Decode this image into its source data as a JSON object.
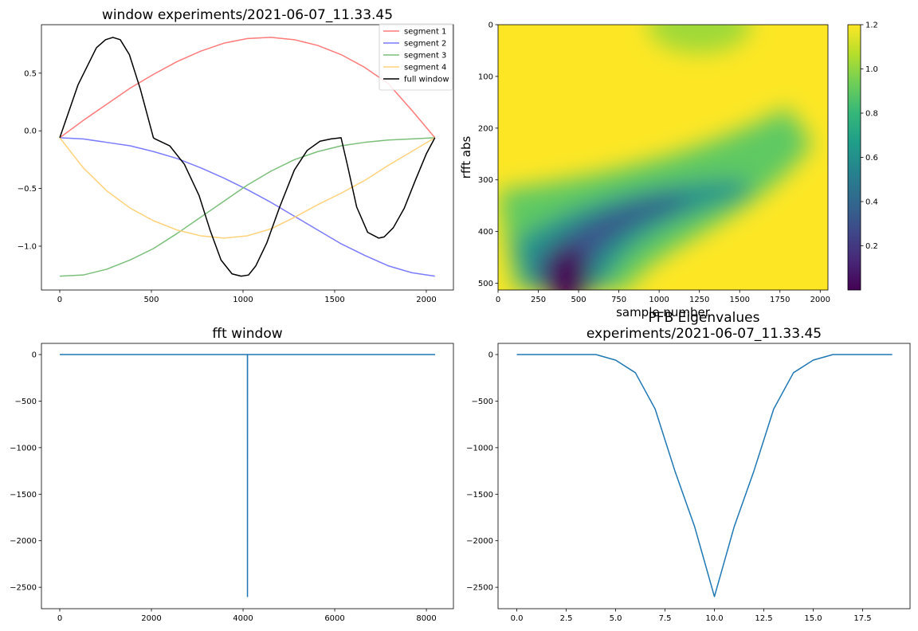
{
  "chart_data": [
    {
      "type": "line",
      "title": "window experiments/2021-06-07_11.33.45",
      "xlabel": "",
      "ylabel": "",
      "xlim": [
        -100,
        2148
      ],
      "ylim": [
        -1.38,
        0.92
      ],
      "xticks": [
        0,
        500,
        1000,
        1500,
        2000
      ],
      "yticks": [
        -1.0,
        -0.5,
        0.0,
        0.5
      ],
      "ytick_labels": [
        "−1.0",
        "−0.5",
        "0.0",
        "0.5"
      ],
      "legend_position": "top-right",
      "series": [
        {
          "name": "segment 1",
          "color": "#ff7b7b",
          "x": [
            0,
            128,
            256,
            384,
            512,
            640,
            768,
            896,
            1024,
            1152,
            1280,
            1408,
            1536,
            1664,
            1792,
            1920,
            2047
          ],
          "y": [
            -0.06,
            0.09,
            0.23,
            0.37,
            0.49,
            0.6,
            0.69,
            0.76,
            0.8,
            0.81,
            0.79,
            0.74,
            0.66,
            0.55,
            0.41,
            0.18,
            -0.06
          ]
        },
        {
          "name": "segment 2",
          "color": "#7b7bff",
          "x": [
            0,
            128,
            256,
            384,
            512,
            640,
            768,
            896,
            1024,
            1152,
            1280,
            1408,
            1536,
            1664,
            1792,
            1920,
            2047
          ],
          "y": [
            -0.06,
            -0.07,
            -0.1,
            -0.13,
            -0.18,
            -0.24,
            -0.32,
            -0.41,
            -0.51,
            -0.62,
            -0.74,
            -0.86,
            -0.98,
            -1.08,
            -1.17,
            -1.23,
            -1.26
          ]
        },
        {
          "name": "segment 3",
          "color": "#7bbf7b",
          "x": [
            0,
            128,
            256,
            384,
            512,
            640,
            768,
            896,
            1024,
            1152,
            1280,
            1408,
            1536,
            1664,
            1792,
            1920,
            2047
          ],
          "y": [
            -1.26,
            -1.25,
            -1.2,
            -1.12,
            -1.02,
            -0.89,
            -0.75,
            -0.61,
            -0.47,
            -0.35,
            -0.25,
            -0.18,
            -0.13,
            -0.1,
            -0.08,
            -0.07,
            -0.06
          ]
        },
        {
          "name": "segment 4",
          "color": "#ffd27b",
          "x": [
            0,
            128,
            256,
            384,
            512,
            640,
            768,
            896,
            1024,
            1152,
            1280,
            1408,
            1536,
            1664,
            1792,
            1920,
            2047
          ],
          "y": [
            -0.06,
            -0.32,
            -0.52,
            -0.67,
            -0.78,
            -0.86,
            -0.91,
            -0.93,
            -0.91,
            -0.85,
            -0.75,
            -0.64,
            -0.54,
            -0.43,
            -0.3,
            -0.18,
            -0.06
          ]
        },
        {
          "name": "full window",
          "color": "#000000",
          "x": [
            0,
            100,
            200,
            250,
            290,
            330,
            380,
            440,
            511,
            520,
            600,
            680,
            760,
            820,
            880,
            940,
            990,
            1030,
            1070,
            1130,
            1200,
            1280,
            1350,
            1420,
            1480,
            1535,
            1570,
            1620,
            1680,
            1740,
            1770,
            1820,
            1880,
            1940,
            2000,
            2047
          ],
          "y": [
            -0.06,
            0.4,
            0.72,
            0.79,
            0.81,
            0.79,
            0.66,
            0.36,
            -0.06,
            -0.07,
            -0.13,
            -0.29,
            -0.56,
            -0.86,
            -1.12,
            -1.24,
            -1.26,
            -1.25,
            -1.17,
            -0.97,
            -0.66,
            -0.34,
            -0.17,
            -0.09,
            -0.07,
            -0.06,
            -0.3,
            -0.66,
            -0.88,
            -0.93,
            -0.92,
            -0.84,
            -0.67,
            -0.43,
            -0.2,
            -0.06
          ]
        }
      ]
    },
    {
      "type": "heatmap",
      "title": "",
      "xlabel": "sample number",
      "ylabel": "rfft abs",
      "xlim": [
        0,
        2048
      ],
      "ylim": [
        513,
        0
      ],
      "xticks": [
        0,
        250,
        500,
        750,
        1000,
        1250,
        1500,
        1750,
        2000
      ],
      "yticks": [
        0,
        100,
        200,
        300,
        400,
        500
      ],
      "colormap": "viridis",
      "color_range": [
        0.0,
        1.2
      ],
      "colorbar_ticks": [
        0.2,
        0.4,
        0.6,
        0.8,
        1.0,
        1.2
      ]
    },
    {
      "type": "line",
      "title": "fft window",
      "xlabel": "",
      "ylabel": "",
      "xlim": [
        -400,
        8590
      ],
      "ylim": [
        -2730,
        120
      ],
      "xticks": [
        0,
        2000,
        4000,
        6000,
        8000
      ],
      "yticks": [
        -2500,
        -2000,
        -1500,
        -1000,
        -500,
        0
      ],
      "ytick_labels": [
        "−2500",
        "−2000",
        "−1500",
        "−1000",
        "−500",
        "0"
      ],
      "series": [
        {
          "color": "#1f77b4",
          "x": [
            0,
            4095,
            4096,
            4097,
            8191
          ],
          "y": [
            0,
            0,
            -2600,
            0,
            0
          ]
        }
      ]
    },
    {
      "type": "line",
      "title": "PFB Eigenvalues\nexperiments/2021-06-07_11.33.45",
      "xlabel": "",
      "ylabel": "",
      "xlim": [
        -0.95,
        19.9
      ],
      "ylim": [
        -2730,
        120
      ],
      "xticks": [
        0,
        2.5,
        5,
        7.5,
        10,
        12.5,
        15,
        17.5
      ],
      "xtick_labels": [
        "0.0",
        "2.5",
        "5.0",
        "7.5",
        "10.0",
        "12.5",
        "15.0",
        "17.5"
      ],
      "yticks": [
        -2500,
        -2000,
        -1500,
        -1000,
        -500,
        0
      ],
      "ytick_labels": [
        "−2500",
        "−2000",
        "−1500",
        "−1000",
        "−500",
        "0"
      ],
      "series": [
        {
          "color": "#1f77b4",
          "x": [
            0,
            1,
            2,
            3,
            4,
            5,
            6,
            7,
            8,
            9,
            10,
            11,
            12,
            13,
            14,
            15,
            16,
            17,
            18,
            19
          ],
          "y": [
            0,
            0,
            0,
            0,
            0,
            -60,
            -195,
            -585,
            -1250,
            -1850,
            -2600,
            -1850,
            -1250,
            -585,
            -195,
            -60,
            0,
            0,
            0,
            0
          ]
        }
      ]
    }
  ]
}
